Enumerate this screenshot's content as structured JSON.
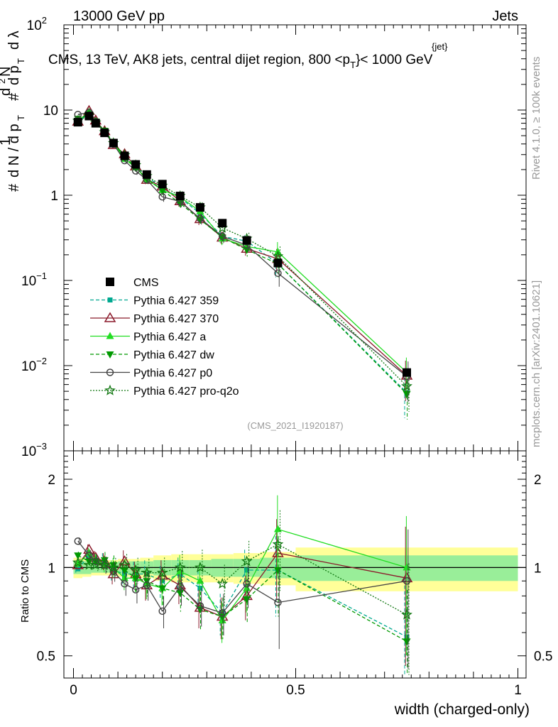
{
  "header": {
    "left": "13000 GeV pp",
    "right": "Jets",
    "plot_title_pre": "CMS, 13 TeV, AK8 jets, central dijet region, 800 <p",
    "plot_title_sup": "{jet}",
    "plot_title_sub": "T",
    "plot_title_post": "}< 1000 GeV"
  },
  "side_labels": {
    "rivet": "Rivet 4.1.0, ≥ 100k events",
    "mcplots": "mcplots.cern.ch [arXiv:2401.10621]"
  },
  "watermark": "(CMS_2021_I1920187)",
  "ylabel_ratio": "Ratio to CMS",
  "xlabel": "width (charged-only)",
  "main_ticks": [
    {
      "base": "10",
      "exp": "−3"
    },
    {
      "base": "10",
      "exp": "−2"
    },
    {
      "base": "10",
      "exp": "−1"
    },
    {
      "base": "1",
      "exp": ""
    },
    {
      "base": "10",
      "exp": ""
    },
    {
      "base": "10",
      "exp": "2"
    }
  ],
  "ratio_ticks": [
    "0.5",
    "1",
    "2"
  ],
  "x_ticks": [
    "0",
    "0.5",
    "1"
  ],
  "chart_data": {
    "type": "line",
    "title": "CMS, 13 TeV, AK8 jets, central dijet region, 800 < pT{jet} < 1000 GeV",
    "xlabel": "width (charged-only)",
    "ylabel": "1/N dN/dλ",
    "xlim": [
      0,
      1
    ],
    "ylim": [
      0.001,
      100
    ],
    "yscale": "log",
    "ratio_ylim": [
      0.42,
      2.5
    ],
    "legend_position": "left-middle",
    "x": [
      0.01,
      0.035,
      0.05,
      0.07,
      0.09,
      0.115,
      0.14,
      0.165,
      0.2,
      0.24,
      0.285,
      0.335,
      0.39,
      0.46,
      0.75
    ],
    "series": [
      {
        "name": "CMS",
        "color": "#000000",
        "marker": "square",
        "line": "none",
        "values": [
          7.2,
          8.5,
          7.0,
          5.4,
          4.1,
          2.9,
          2.3,
          1.75,
          1.35,
          0.98,
          0.72,
          0.47,
          0.295,
          0.16,
          0.0083
        ]
      },
      {
        "name": "Pythia 6.427 359",
        "color": "#00a890",
        "marker": "square-small",
        "line": "dashed",
        "ratio": [
          0.99,
          1.1,
          1.06,
          1.05,
          0.98,
          0.95,
          0.95,
          0.95,
          0.9,
          0.95,
          0.85,
          0.7,
          0.98,
          0.98,
          0.58
        ]
      },
      {
        "name": "Pythia 6.427 370",
        "color": "#8b1a2b",
        "marker": "triangle-open",
        "line": "solid",
        "ratio": [
          1.02,
          1.15,
          1.08,
          1.05,
          0.95,
          1.05,
          0.95,
          0.87,
          0.94,
          0.87,
          0.73,
          0.68,
          0.8,
          1.12,
          0.92
        ]
      },
      {
        "name": "Pythia 6.427 a",
        "color": "#22dd22",
        "marker": "triangle",
        "line": "solid",
        "ratio": [
          1.03,
          1.12,
          1.06,
          1.03,
          1.0,
          0.92,
          0.92,
          0.88,
          0.85,
          0.97,
          0.9,
          0.66,
          0.85,
          1.35,
          1.0
        ]
      },
      {
        "name": "Pythia 6.427 dw",
        "color": "#009900",
        "marker": "triangle-down",
        "line": "dashed",
        "ratio": [
          1.1,
          1.05,
          1.05,
          1.06,
          1.02,
          0.98,
          0.92,
          0.9,
          0.85,
          0.82,
          0.72,
          0.68,
          0.78,
          0.98,
          0.56
        ]
      },
      {
        "name": "Pythia 6.427 p0",
        "color": "#444444",
        "marker": "circle-open",
        "line": "solid",
        "ratio": [
          1.23,
          1.1,
          1.05,
          1.02,
          0.97,
          0.88,
          0.84,
          0.87,
          0.71,
          0.86,
          0.74,
          0.7,
          0.88,
          0.76,
          0.9
        ]
      },
      {
        "name": "Pythia 6.427 pro-q2o",
        "color": "#117711",
        "marker": "star",
        "line": "dotted",
        "ratio": [
          1.04,
          1.02,
          1.02,
          1.02,
          1.0,
          1.02,
          0.98,
          0.96,
          0.96,
          1.0,
          1.0,
          0.88,
          1.05,
          1.2,
          0.69
        ]
      }
    ],
    "band_edges": [
      0.0,
      0.02,
      0.04,
      0.06,
      0.08,
      0.1,
      0.13,
      0.15,
      0.18,
      0.22,
      0.26,
      0.31,
      0.36,
      0.42,
      0.5,
      1.0
    ],
    "band_stat": [
      0.05,
      0.05,
      0.04,
      0.04,
      0.04,
      0.05,
      0.05,
      0.05,
      0.06,
      0.06,
      0.06,
      0.07,
      0.07,
      0.08,
      0.1
    ],
    "band_total": [
      0.08,
      0.07,
      0.06,
      0.06,
      0.06,
      0.07,
      0.07,
      0.08,
      0.1,
      0.11,
      0.11,
      0.11,
      0.12,
      0.13,
      0.17
    ]
  }
}
